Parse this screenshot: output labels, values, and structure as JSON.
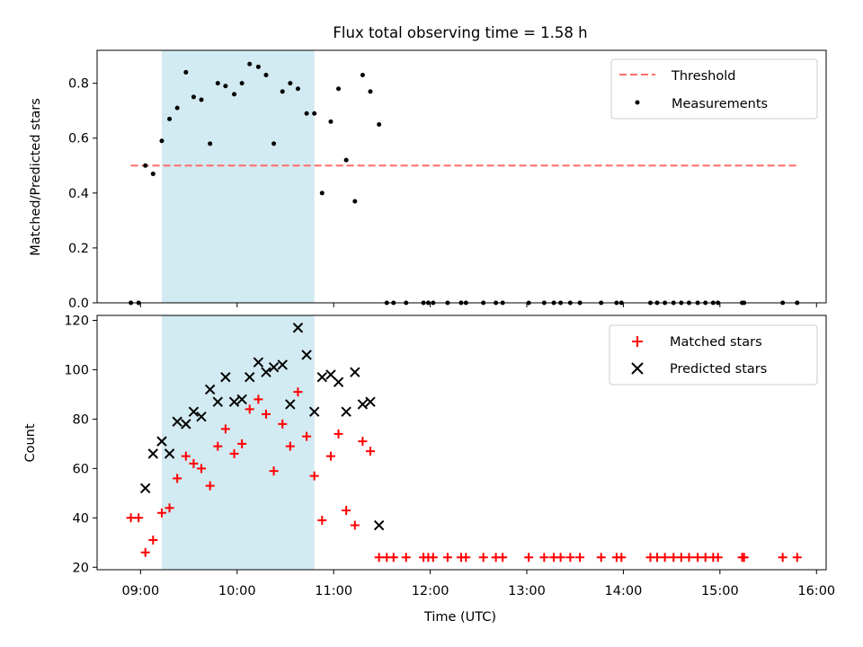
{
  "title": "Flux total observing time = 1.58 h",
  "colors": {
    "threshold": "#ff6b6b",
    "span": "#add8e6",
    "matched": "#ff0000",
    "predicted": "#000000",
    "measurement": "#000000"
  },
  "chart_data": [
    {
      "type": "scatter",
      "panel": "top",
      "ylabel": "Matched/Predicted stars",
      "xlim_hours": [
        8.55,
        16.1
      ],
      "ylim": [
        0,
        0.92
      ],
      "yticks": [
        0.0,
        0.2,
        0.4,
        0.6,
        0.8
      ],
      "ytick_labels": [
        "0.0",
        "0.2",
        "0.4",
        "0.6",
        "0.8"
      ],
      "span_hours": [
        9.22,
        10.8
      ],
      "threshold": {
        "label": "Threshold",
        "value": 0.5,
        "x_hours": [
          8.9,
          15.8
        ]
      },
      "legend": [
        "Threshold",
        "Measurements"
      ],
      "legend_position": "upper-right",
      "series": [
        {
          "name": "Measurements",
          "marker": "dot",
          "points": [
            [
              8.9,
              0.0
            ],
            [
              8.98,
              0.0
            ],
            [
              9.05,
              0.5
            ],
            [
              9.13,
              0.47
            ],
            [
              9.22,
              0.59
            ],
            [
              9.3,
              0.67
            ],
            [
              9.38,
              0.71
            ],
            [
              9.47,
              0.84
            ],
            [
              9.55,
              0.75
            ],
            [
              9.63,
              0.74
            ],
            [
              9.72,
              0.58
            ],
            [
              9.8,
              0.8
            ],
            [
              9.88,
              0.79
            ],
            [
              9.97,
              0.76
            ],
            [
              10.05,
              0.8
            ],
            [
              10.13,
              0.87
            ],
            [
              10.22,
              0.86
            ],
            [
              10.3,
              0.83
            ],
            [
              10.38,
              0.58
            ],
            [
              10.47,
              0.77
            ],
            [
              10.55,
              0.8
            ],
            [
              10.63,
              0.78
            ],
            [
              10.72,
              0.69
            ],
            [
              10.8,
              0.69
            ],
            [
              10.88,
              0.4
            ],
            [
              10.97,
              0.66
            ],
            [
              11.05,
              0.78
            ],
            [
              11.13,
              0.52
            ],
            [
              11.22,
              0.37
            ],
            [
              11.3,
              0.83
            ],
            [
              11.38,
              0.77
            ],
            [
              11.47,
              0.65
            ],
            [
              11.55,
              0.0
            ],
            [
              11.62,
              0.0
            ],
            [
              11.75,
              0.0
            ],
            [
              11.93,
              0.0
            ],
            [
              11.98,
              0.0
            ],
            [
              12.03,
              0.0
            ],
            [
              12.18,
              0.0
            ],
            [
              12.32,
              0.0
            ],
            [
              12.37,
              0.0
            ],
            [
              12.55,
              0.0
            ],
            [
              12.68,
              0.0
            ],
            [
              12.75,
              0.0
            ],
            [
              13.02,
              0.0
            ],
            [
              13.18,
              0.0
            ],
            [
              13.28,
              0.0
            ],
            [
              13.35,
              0.0
            ],
            [
              13.45,
              0.0
            ],
            [
              13.55,
              0.0
            ],
            [
              13.77,
              0.0
            ],
            [
              13.93,
              0.0
            ],
            [
              13.98,
              0.0
            ],
            [
              14.28,
              0.0
            ],
            [
              14.35,
              0.0
            ],
            [
              14.43,
              0.0
            ],
            [
              14.52,
              0.0
            ],
            [
              14.6,
              0.0
            ],
            [
              14.68,
              0.0
            ],
            [
              14.77,
              0.0
            ],
            [
              14.85,
              0.0
            ],
            [
              14.93,
              0.0
            ],
            [
              14.98,
              0.0
            ],
            [
              15.23,
              0.0
            ],
            [
              15.25,
              0.0
            ],
            [
              15.65,
              0.0
            ],
            [
              15.8,
              0.0
            ]
          ]
        }
      ]
    },
    {
      "type": "scatter",
      "panel": "bottom",
      "xlabel": "Time (UTC)",
      "ylabel": "Count",
      "xlim_hours": [
        8.55,
        16.1
      ],
      "ylim": [
        19,
        122
      ],
      "yticks": [
        20,
        40,
        60,
        80,
        100,
        120
      ],
      "ytick_labels": [
        "20",
        "40",
        "60",
        "80",
        "100",
        "120"
      ],
      "xticks_hours": [
        9,
        10,
        11,
        12,
        13,
        14,
        15,
        16
      ],
      "xtick_labels": [
        "09:00",
        "10:00",
        "11:00",
        "12:00",
        "13:00",
        "14:00",
        "15:00",
        "16:00"
      ],
      "span_hours": [
        9.22,
        10.8
      ],
      "legend": [
        "Matched stars",
        "Predicted stars"
      ],
      "legend_position": "upper-right",
      "series": [
        {
          "name": "Matched stars",
          "marker": "plus",
          "points": [
            [
              8.9,
              40
            ],
            [
              8.98,
              40
            ],
            [
              9.05,
              26
            ],
            [
              9.13,
              31
            ],
            [
              9.22,
              42
            ],
            [
              9.3,
              44
            ],
            [
              9.38,
              56
            ],
            [
              9.47,
              65
            ],
            [
              9.55,
              62
            ],
            [
              9.63,
              60
            ],
            [
              9.72,
              53
            ],
            [
              9.8,
              69
            ],
            [
              9.88,
              76
            ],
            [
              9.97,
              66
            ],
            [
              10.05,
              70
            ],
            [
              10.13,
              84
            ],
            [
              10.22,
              88
            ],
            [
              10.3,
              82
            ],
            [
              10.38,
              59
            ],
            [
              10.47,
              78
            ],
            [
              10.55,
              69
            ],
            [
              10.63,
              91
            ],
            [
              10.72,
              73
            ],
            [
              10.8,
              57
            ],
            [
              10.88,
              39
            ],
            [
              10.97,
              65
            ],
            [
              11.05,
              74
            ],
            [
              11.13,
              43
            ],
            [
              11.22,
              37
            ],
            [
              11.3,
              71
            ],
            [
              11.38,
              67
            ],
            [
              11.47,
              24
            ],
            [
              11.55,
              24
            ],
            [
              11.62,
              24
            ],
            [
              11.75,
              24
            ],
            [
              11.93,
              24
            ],
            [
              11.98,
              24
            ],
            [
              12.03,
              24
            ],
            [
              12.18,
              24
            ],
            [
              12.32,
              24
            ],
            [
              12.37,
              24
            ],
            [
              12.55,
              24
            ],
            [
              12.68,
              24
            ],
            [
              12.75,
              24
            ],
            [
              13.02,
              24
            ],
            [
              13.18,
              24
            ],
            [
              13.28,
              24
            ],
            [
              13.35,
              24
            ],
            [
              13.45,
              24
            ],
            [
              13.55,
              24
            ],
            [
              13.77,
              24
            ],
            [
              13.93,
              24
            ],
            [
              13.98,
              24
            ],
            [
              14.28,
              24
            ],
            [
              14.35,
              24
            ],
            [
              14.43,
              24
            ],
            [
              14.52,
              24
            ],
            [
              14.6,
              24
            ],
            [
              14.68,
              24
            ],
            [
              14.77,
              24
            ],
            [
              14.85,
              24
            ],
            [
              14.93,
              24
            ],
            [
              14.98,
              24
            ],
            [
              15.23,
              24
            ],
            [
              15.25,
              24
            ],
            [
              15.65,
              24
            ],
            [
              15.8,
              24
            ]
          ]
        },
        {
          "name": "Predicted stars",
          "marker": "x",
          "points": [
            [
              9.05,
              52
            ],
            [
              9.13,
              66
            ],
            [
              9.22,
              71
            ],
            [
              9.3,
              66
            ],
            [
              9.38,
              79
            ],
            [
              9.47,
              78
            ],
            [
              9.55,
              83
            ],
            [
              9.63,
              81
            ],
            [
              9.72,
              92
            ],
            [
              9.8,
              87
            ],
            [
              9.88,
              97
            ],
            [
              9.97,
              87
            ],
            [
              10.05,
              88
            ],
            [
              10.13,
              97
            ],
            [
              10.22,
              103
            ],
            [
              10.3,
              99
            ],
            [
              10.38,
              101
            ],
            [
              10.47,
              102
            ],
            [
              10.55,
              86
            ],
            [
              10.63,
              117
            ],
            [
              10.72,
              106
            ],
            [
              10.8,
              83
            ],
            [
              10.88,
              97
            ],
            [
              10.97,
              98
            ],
            [
              11.05,
              95
            ],
            [
              11.13,
              83
            ],
            [
              11.22,
              99
            ],
            [
              11.3,
              86
            ],
            [
              11.38,
              87
            ],
            [
              11.47,
              37
            ]
          ]
        }
      ]
    }
  ]
}
